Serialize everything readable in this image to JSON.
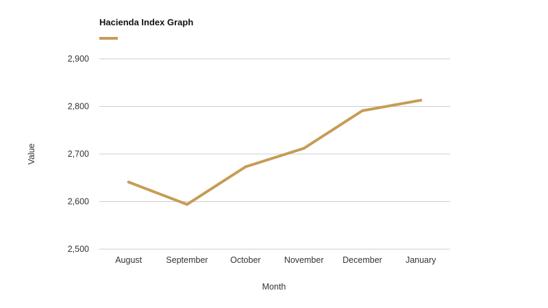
{
  "chart_data": {
    "type": "line",
    "title": "Hacienda Index Graph",
    "xlabel": "Month",
    "ylabel": "Value",
    "categories": [
      "August",
      "September",
      "October",
      "November",
      "December",
      "January"
    ],
    "series": [
      {
        "values": [
          2641,
          2594,
          2673,
          2712,
          2791,
          2813
        ]
      }
    ],
    "ylim": [
      2500,
      2900
    ],
    "yticks": [
      2500,
      2600,
      2700,
      2800,
      2900
    ],
    "ytick_labels": [
      "2,500",
      "2,600",
      "2,700",
      "2,800",
      "2,900"
    ],
    "grid": true,
    "legend": "top-left",
    "colors": {
      "series": "#c69c55",
      "grid": "#cccccc",
      "text": "#333333"
    }
  }
}
